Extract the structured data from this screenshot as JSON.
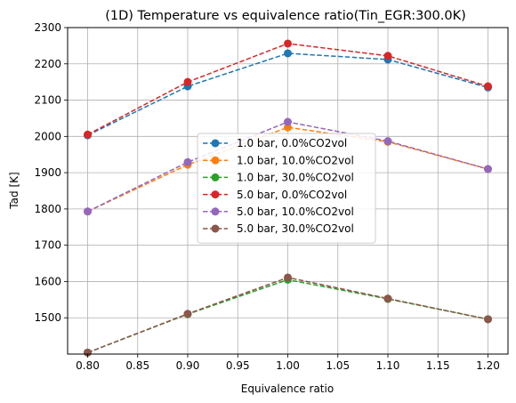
{
  "chart_data": {
    "type": "line",
    "title": "(1D) Temperature vs equivalence ratio(Tin_EGR:300.0K)",
    "xlabel": "Equivalence ratio",
    "ylabel": "Tad [K]",
    "xlim": [
      0.78,
      1.22
    ],
    "ylim": [
      1400,
      2300
    ],
    "xticks": [
      "0.80",
      "0.85",
      "0.90",
      "0.95",
      "1.00",
      "1.05",
      "1.10",
      "1.15",
      "1.20"
    ],
    "yticks": [
      "1500",
      "1600",
      "1700",
      "1800",
      "1900",
      "2000",
      "2100",
      "2200",
      "2300"
    ],
    "grid": true,
    "legend_position": "center",
    "x": [
      0.8,
      0.9,
      1.0,
      1.1,
      1.2
    ],
    "series": [
      {
        "name": "1.0 bar, 0.0%CO2vol",
        "color": "#1f77b4",
        "values": [
          2003,
          2138,
          2229,
          2212,
          2135
        ]
      },
      {
        "name": "1.0 bar, 10.0%CO2vol",
        "color": "#ff7f0e",
        "values": [
          1793,
          1922,
          2025,
          1985,
          1910
        ]
      },
      {
        "name": "1.0 bar, 30.0%CO2vol",
        "color": "#2ca02c",
        "values": [
          1404,
          1510,
          1605,
          1552,
          1496
        ]
      },
      {
        "name": "5.0 bar, 0.0%CO2vol",
        "color": "#d62728",
        "values": [
          2005,
          2150,
          2256,
          2222,
          2138
        ]
      },
      {
        "name": "5.0 bar, 10.0%CO2vol",
        "color": "#9467bd",
        "values": [
          1793,
          1929,
          2040,
          1987,
          1910
        ]
      },
      {
        "name": "5.0 bar, 30.0%CO2vol",
        "color": "#8c564b",
        "values": [
          1404,
          1511,
          1611,
          1553,
          1496
        ]
      }
    ]
  }
}
